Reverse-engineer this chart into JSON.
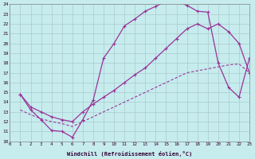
{
  "xlabel": "Windchill (Refroidissement éolien,°C)",
  "bg_color": "#c6ecee",
  "grid_color": "#aacccc",
  "line_color": "#993399",
  "xlim": [
    0,
    23
  ],
  "ylim": [
    10,
    24
  ],
  "xticks": [
    0,
    1,
    2,
    3,
    4,
    5,
    6,
    7,
    8,
    9,
    10,
    11,
    12,
    13,
    14,
    15,
    16,
    17,
    18,
    19,
    20,
    21,
    22,
    23
  ],
  "yticks": [
    10,
    11,
    12,
    13,
    14,
    15,
    16,
    17,
    18,
    19,
    20,
    21,
    22,
    23,
    24
  ],
  "line1_x": [
    1,
    2,
    3,
    4,
    5,
    6,
    7,
    8,
    9,
    10,
    11,
    12,
    13,
    14,
    15,
    16,
    17,
    18,
    19,
    20,
    21,
    22,
    23
  ],
  "line1_y": [
    14.8,
    13.2,
    12.2,
    11.1,
    11.0,
    10.4,
    12.2,
    14.2,
    18.5,
    20.0,
    21.8,
    22.5,
    23.3,
    23.8,
    24.3,
    24.3,
    23.9,
    23.3,
    23.2,
    18.0,
    15.5,
    14.5,
    18.5
  ],
  "line2_x": [
    1,
    2,
    3,
    4,
    5,
    6,
    7,
    8,
    9,
    10,
    11,
    12,
    13,
    14,
    15,
    16,
    17,
    18,
    19,
    20,
    21,
    22,
    23
  ],
  "line2_y": [
    14.8,
    13.5,
    13.0,
    12.5,
    12.2,
    12.0,
    13.0,
    13.8,
    14.5,
    15.2,
    16.0,
    16.8,
    17.5,
    18.5,
    19.5,
    20.5,
    21.5,
    22.0,
    21.5,
    22.0,
    21.2,
    20.0,
    17.0
  ],
  "line3_x": [
    1,
    2,
    3,
    4,
    5,
    6,
    7,
    8,
    9,
    10,
    11,
    12,
    13,
    14,
    15,
    16,
    17,
    18,
    19,
    20,
    21,
    22,
    23
  ],
  "line3_y": [
    13.2,
    12.7,
    12.3,
    12.0,
    11.8,
    11.5,
    12.0,
    12.5,
    13.0,
    13.5,
    14.0,
    14.5,
    15.0,
    15.5,
    16.0,
    16.5,
    17.0,
    17.2,
    17.4,
    17.6,
    17.8,
    17.9,
    17.0
  ]
}
